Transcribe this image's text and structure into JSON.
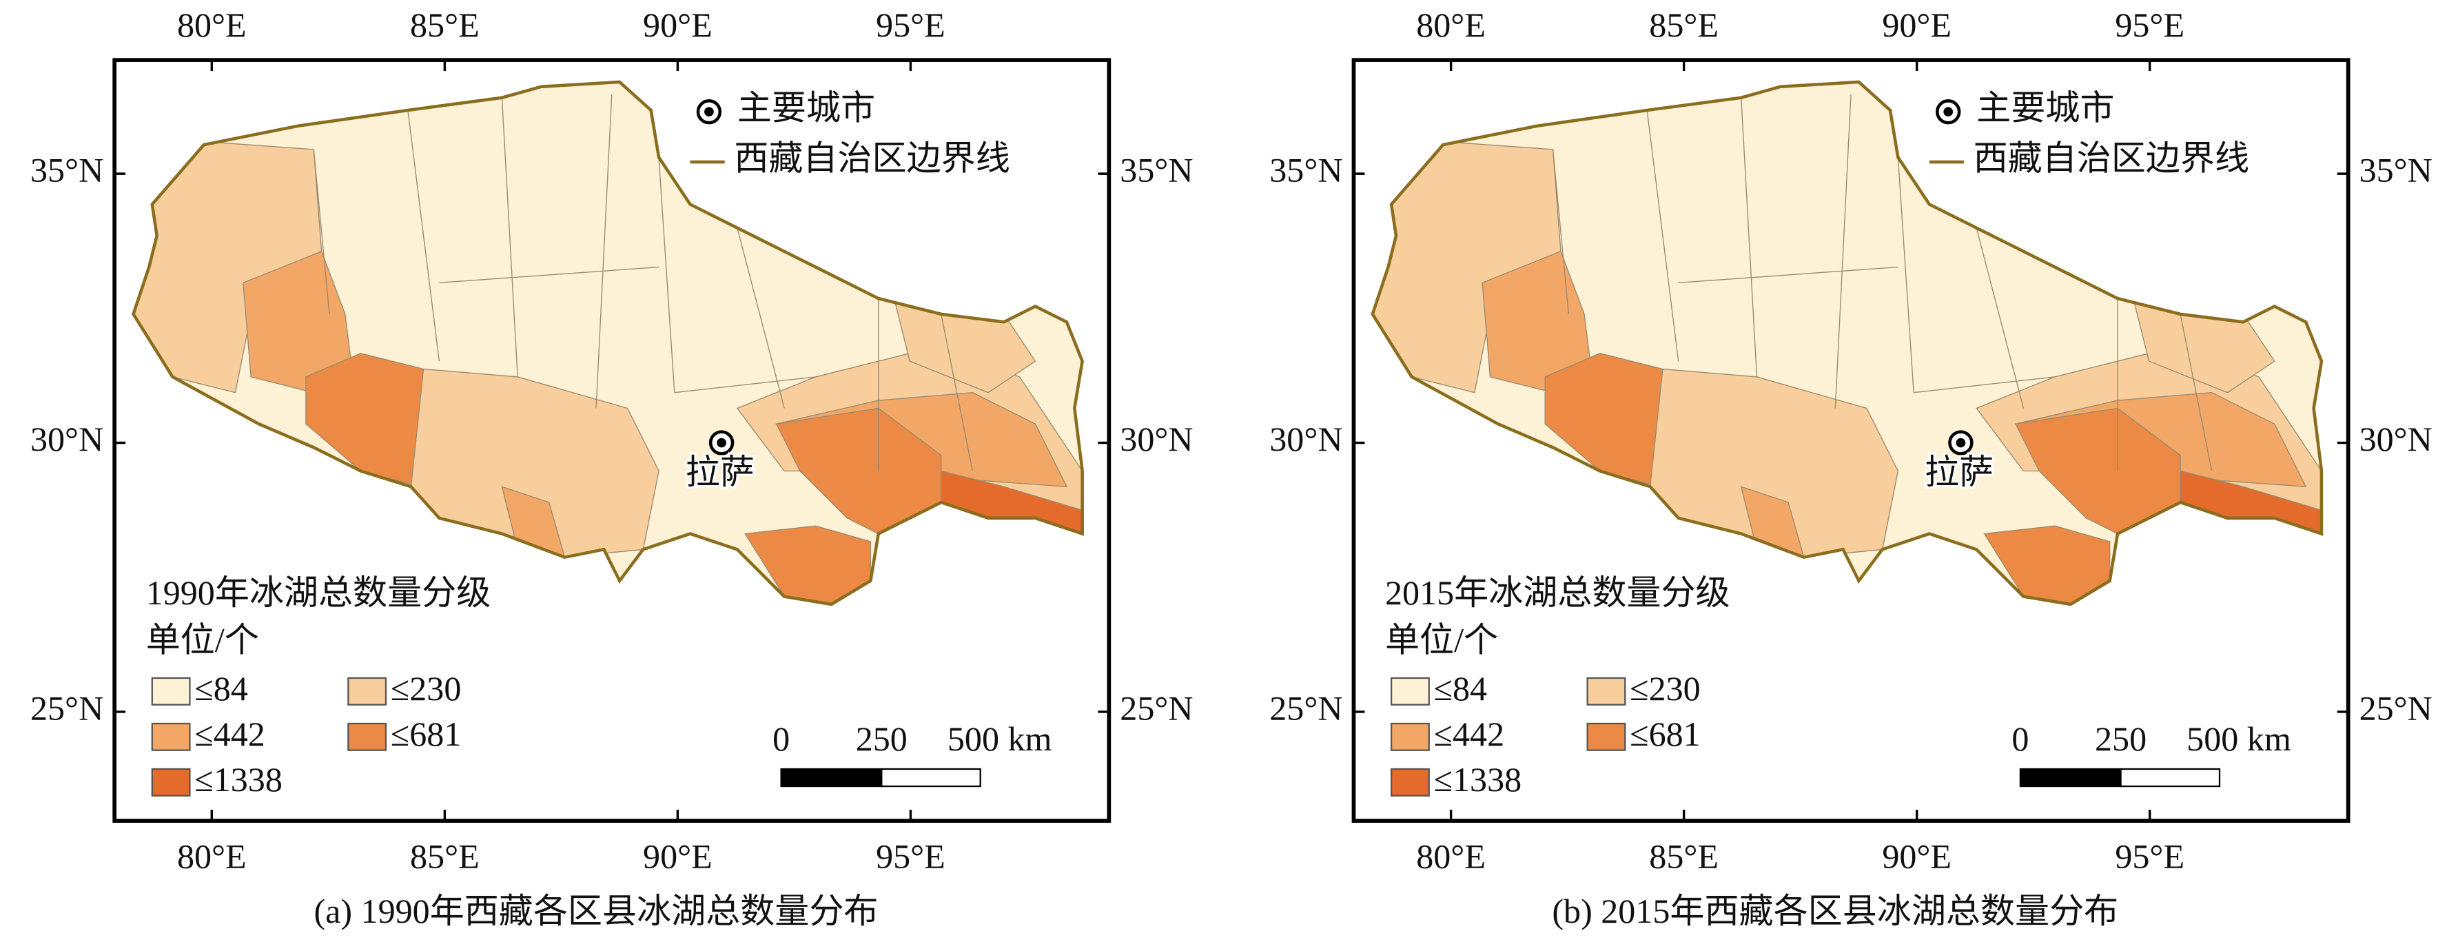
{
  "lon_ticks": [
    {
      "value": 80,
      "label": "80°E"
    },
    {
      "value": 85,
      "label": "85°E"
    },
    {
      "value": 90,
      "label": "90°E"
    },
    {
      "value": 95,
      "label": "95°E"
    }
  ],
  "lat_ticks": [
    {
      "value": 35,
      "label": "35°N"
    },
    {
      "value": 30,
      "label": "30°N"
    },
    {
      "value": 25,
      "label": "25°N"
    }
  ],
  "map_legend": {
    "city": "主要城市",
    "boundary": "西藏自治区边界线"
  },
  "city_label": "拉萨",
  "scale_bar": [
    "0",
    "250",
    "500 km"
  ],
  "classes": [
    {
      "label": "≤84",
      "color": "#fdf1d6"
    },
    {
      "label": "≤230",
      "color": "#f8cf9c"
    },
    {
      "label": "≤442",
      "color": "#f3a766"
    },
    {
      "label": "≤681",
      "color": "#ec8a45"
    },
    {
      "label": "≤1338",
      "color": "#e46b2b"
    }
  ],
  "panels": [
    {
      "legend_title": "1990年冰湖总数量分级",
      "unit": "单位/个",
      "caption": "(a) 1990年西藏各区县冰湖总数量分布"
    },
    {
      "legend_title": "2015年冰湖总数量分级",
      "unit": "单位/个",
      "caption": "(b) 2015年西藏各区县冰湖总数量分布"
    }
  ]
}
